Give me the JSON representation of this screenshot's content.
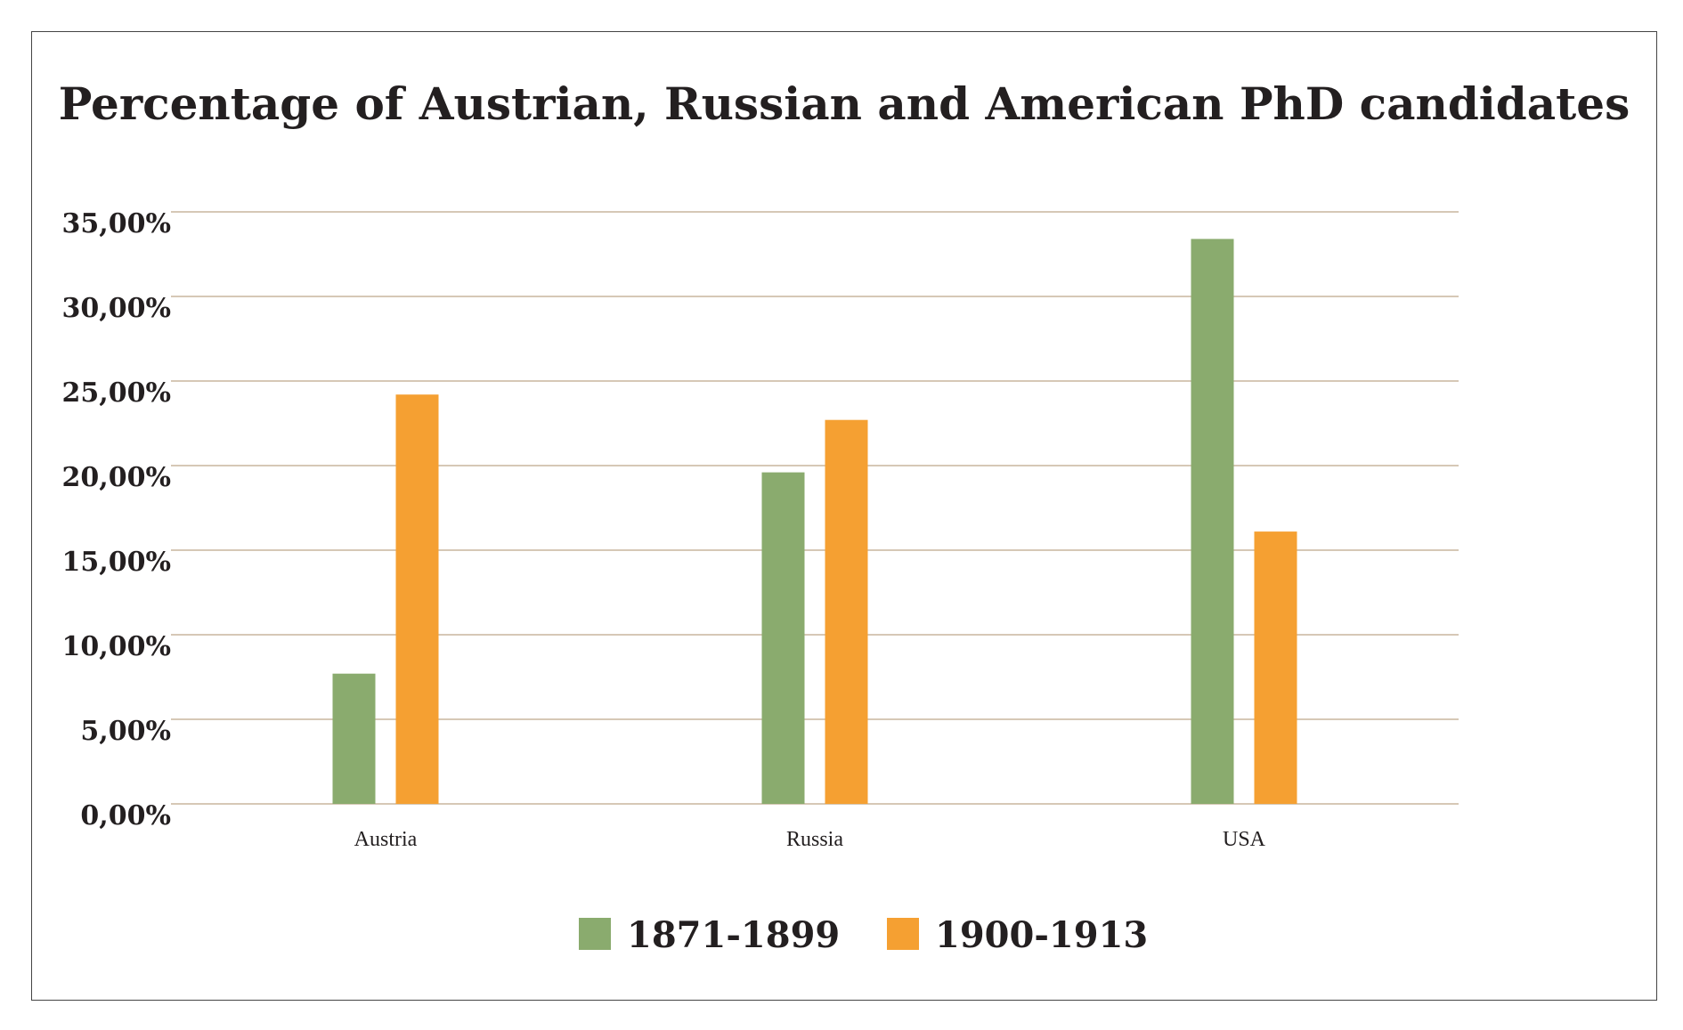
{
  "chart_data": {
    "type": "bar",
    "title": "Percentage of Austrian, Russian and American PhD candidates",
    "categories": [
      "Austria",
      "Russia",
      "USA"
    ],
    "series": [
      {
        "name": "1871-1899",
        "color": "#8aab6e",
        "values": [
          7.7,
          19.6,
          33.4
        ]
      },
      {
        "name": "1900-1913",
        "color": "#f5a032",
        "values": [
          24.2,
          22.7,
          16.1
        ]
      }
    ],
    "ylim": [
      0,
      35
    ],
    "ytick_values": [
      0,
      5,
      10,
      15,
      20,
      25,
      30,
      35
    ],
    "ytick_labels": [
      "0,00%",
      "5,00%",
      "10,00%",
      "15,00%",
      "20,00%",
      "25,00%",
      "30,00%",
      "35,00%"
    ],
    "grid": true,
    "legend_position": "bottom-center"
  }
}
